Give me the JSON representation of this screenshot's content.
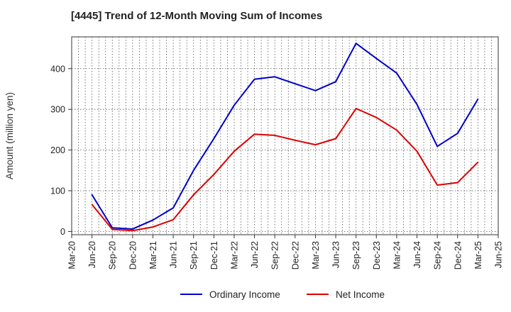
{
  "chart_data": {
    "type": "line",
    "title": "[4445]  Trend of 12-Month Moving Sum of Incomes",
    "xlabel": "",
    "ylabel": "Amount (million yen)",
    "x_ticks": [
      "Mar-20",
      "Jun-20",
      "Sep-20",
      "Dec-20",
      "Mar-21",
      "Jun-21",
      "Sep-21",
      "Dec-21",
      "Mar-22",
      "Jun-22",
      "Sep-22",
      "Dec-22",
      "Mar-23",
      "Jun-23",
      "Sep-23",
      "Dec-23",
      "Mar-24",
      "Jun-24",
      "Sep-24",
      "Dec-24",
      "Mar-25",
      "Jun-25"
    ],
    "y_ticks": [
      0,
      100,
      200,
      300,
      400
    ],
    "ylim": [
      -8,
      478
    ],
    "grid": true,
    "legend_position": "bottom-center",
    "series": [
      {
        "name": "Ordinary Income",
        "color": "#0000cc",
        "x": [
          "Jun-20",
          "Sep-20",
          "Dec-20",
          "Mar-21",
          "Jun-21",
          "Sep-21",
          "Dec-21",
          "Mar-22",
          "Jun-22",
          "Sep-22",
          "Dec-22",
          "Mar-23",
          "Jun-23",
          "Sep-23",
          "Dec-23",
          "Mar-24",
          "Jun-24",
          "Sep-24",
          "Dec-24",
          "Mar-25"
        ],
        "values": [
          90,
          9,
          6,
          28,
          58,
          150,
          228,
          310,
          374,
          380,
          363,
          346,
          368,
          462,
          425,
          389,
          312,
          209,
          241,
          325
        ]
      },
      {
        "name": "Net Income",
        "color": "#dd0000",
        "x": [
          "Jun-20",
          "Sep-20",
          "Dec-20",
          "Mar-21",
          "Jun-21",
          "Sep-21",
          "Dec-21",
          "Mar-22",
          "Jun-22",
          "Sep-22",
          "Dec-22",
          "Mar-23",
          "Jun-23",
          "Sep-23",
          "Dec-23",
          "Mar-24",
          "Jun-24",
          "Sep-24",
          "Dec-24",
          "Mar-25"
        ],
        "values": [
          66,
          5,
          2,
          11,
          29,
          90,
          140,
          197,
          239,
          236,
          224,
          213,
          228,
          302,
          280,
          249,
          197,
          114,
          120,
          170
        ]
      }
    ]
  }
}
